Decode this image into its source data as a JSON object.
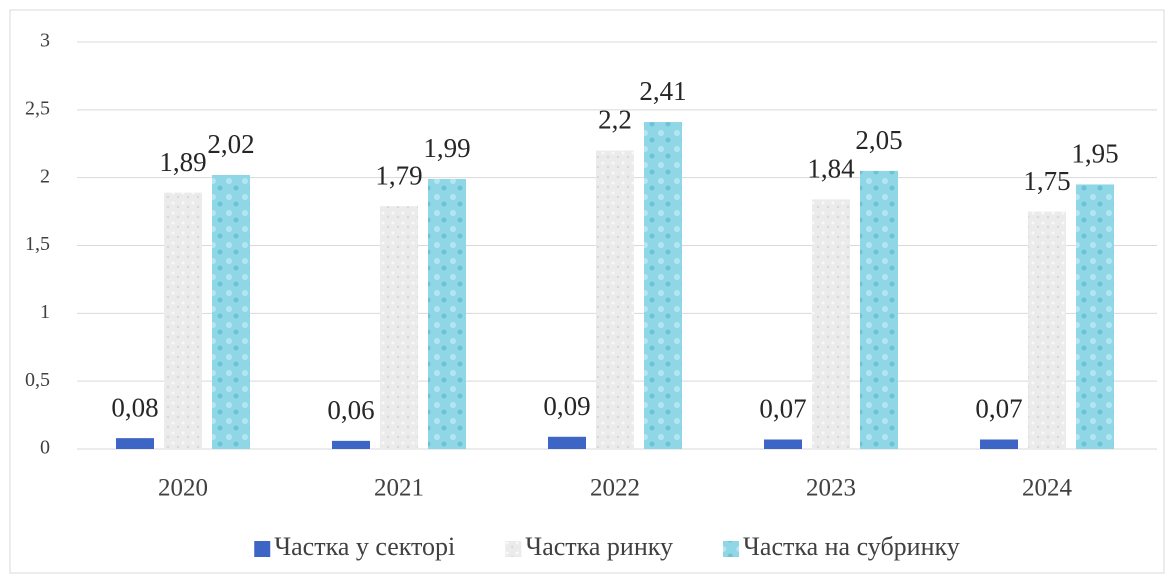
{
  "chart_data": {
    "type": "bar",
    "categories": [
      "2020",
      "2021",
      "2022",
      "2023",
      "2024"
    ],
    "series": [
      {
        "name": "Частка у секторі",
        "color": "#3d65c6",
        "values": [
          0.08,
          0.06,
          0.09,
          0.07,
          0.07
        ],
        "value_labels": [
          "0,08",
          "0,06",
          "0,09",
          "0,07",
          "0,07"
        ]
      },
      {
        "name": "Частка ринку",
        "color": "#e6e6e6",
        "values": [
          1.89,
          1.79,
          2.2,
          1.84,
          1.75
        ],
        "value_labels": [
          "1,89",
          "1,79",
          "2,2",
          "1,84",
          "1,75"
        ]
      },
      {
        "name": "Частка на субринку",
        "color": "#8fd6e6",
        "values": [
          2.02,
          1.99,
          2.41,
          2.05,
          1.95
        ],
        "value_labels": [
          "2,02",
          "1,99",
          "2,41",
          "2,05",
          "1,95"
        ]
      }
    ],
    "ylim": [
      0,
      3
    ],
    "yticks": [
      0,
      {
        "value": 0.5,
        "label": "0,5"
      },
      1,
      {
        "value": 1.5,
        "label": "1,5"
      },
      2,
      {
        "value": 2.5,
        "label": "2,5"
      },
      3
    ],
    "grid": true,
    "legend": "bottom"
  }
}
